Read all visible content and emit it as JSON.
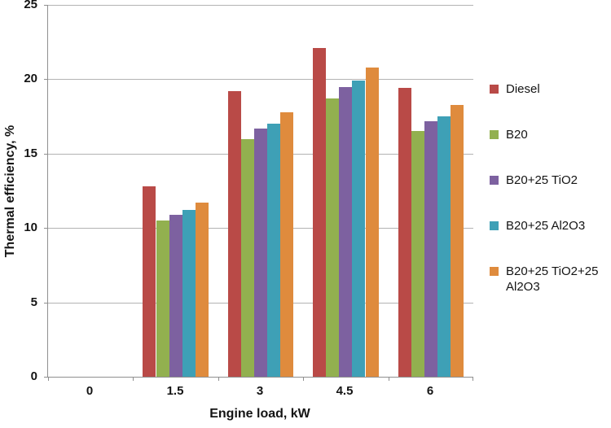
{
  "figure": {
    "background": "#FFFFFF"
  },
  "colors": {
    "axis_line": "#8F8F8F",
    "gridline": "#B3B3B3",
    "text": "#141414"
  },
  "chart_data": {
    "type": "bar",
    "title": "",
    "xlabel": "Engine load, kW",
    "ylabel": "Thermal efficiency, %",
    "ylim": [
      0,
      25
    ],
    "yticks": [
      0,
      5,
      10,
      15,
      20,
      25
    ],
    "categories": [
      "0",
      "1.5",
      "3",
      "4.5",
      "6"
    ],
    "grid": true,
    "legend_position": "right",
    "bar_gap_ratio": 1.5,
    "series": [
      {
        "name": "Diesel",
        "color": "#B94A47",
        "values": [
          0,
          12.8,
          19.2,
          22.1,
          19.4
        ]
      },
      {
        "name": "B20",
        "color": "#92B04F",
        "values": [
          0,
          10.5,
          16.0,
          18.7,
          16.5
        ]
      },
      {
        "name": "B20+25 TiO2",
        "color": "#7D61A0",
        "values": [
          0,
          10.9,
          16.7,
          19.5,
          17.2
        ]
      },
      {
        "name": "B20+25 Al2O3",
        "color": "#3EA0B6",
        "values": [
          0,
          11.2,
          17.0,
          19.9,
          17.5
        ]
      },
      {
        "name": "B20+25 TiO2+25 Al2O3",
        "color": "#DF8B3D",
        "values": [
          0,
          11.7,
          17.8,
          20.8,
          18.3
        ]
      }
    ]
  }
}
